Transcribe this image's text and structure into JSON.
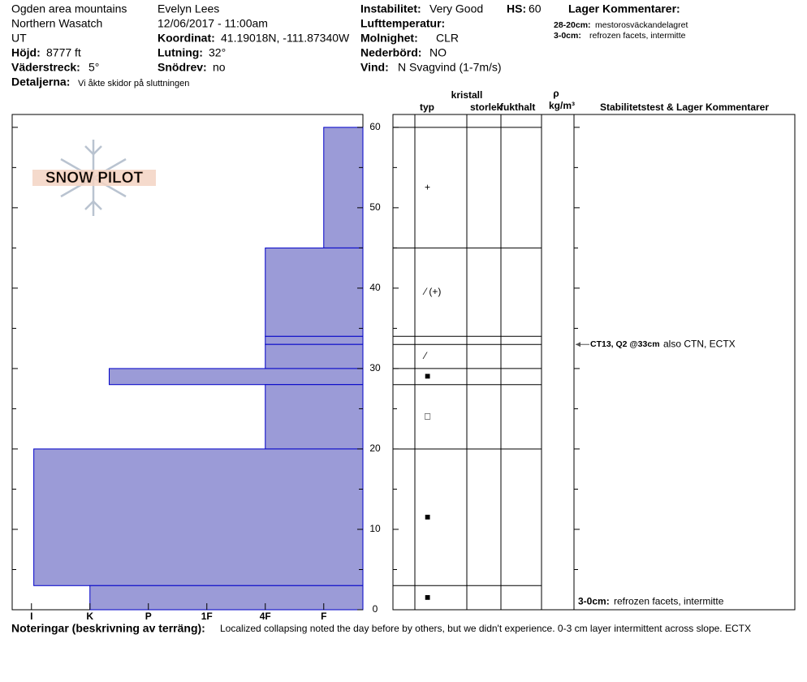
{
  "header": {
    "location": "Ogden area mountains",
    "range": "Northern Wasatch",
    "state": "UT",
    "elevation_label": "Höjd:",
    "elevation": "8777 ft",
    "aspect_label": "Väderstreck:",
    "aspect": "5°",
    "details_label": "Detaljerna:",
    "details": "Vi åkte skidor på sluttningen",
    "observer": "Evelyn Lees",
    "datetime": "12/06/2017 - 11:00am",
    "coord_label": "Koordinat:",
    "coord": "41.19018N, -111.87340W",
    "slope_label": "Lutning:",
    "slope": "32°",
    "wind_loading_label": "Snödrev:",
    "wind_loading": "no",
    "stability_label": "Instabilitet:",
    "stability": "Very Good",
    "hs_label": "HS:",
    "hs": "60",
    "air_temp_label": "Lufttemperatur:",
    "sky_label": "Molnighet:",
    "sky": "CLR",
    "precip_label": "Nederbörd:",
    "precip": "NO",
    "wind_label": "Vind:",
    "wind": "N Svagvind (1-7m/s)",
    "layer_comments_title": "Lager Kommentarer:",
    "layer_comments": [
      {
        "range": "28-20cm:",
        "text": "mestorosväckandelagret"
      },
      {
        "range": "3-0cm:",
        "text": "refrozen facets, intermitte"
      }
    ]
  },
  "logo": "SNOW PILOT",
  "columns": {
    "crystal": "kristall",
    "type": "typ",
    "size": "storlek",
    "moisture": "fukthalt",
    "rho": "ρ",
    "density_unit": "kg/m³",
    "tests": "Stabilitetstest & Lager Kommentarer"
  },
  "chart_data": {
    "type": "snow-profile",
    "xlim": [
      0.33,
      6.33
    ],
    "xticks": [
      {
        "value": 6,
        "label": "I"
      },
      {
        "value": 5,
        "label": "K"
      },
      {
        "value": 4,
        "label": "P"
      },
      {
        "value": 3,
        "label": "1F"
      },
      {
        "value": 2,
        "label": "4F"
      },
      {
        "value": 1,
        "label": "F"
      }
    ],
    "ylim": [
      0,
      61.6
    ],
    "yticks": [
      0,
      10,
      20,
      30,
      40,
      50,
      60
    ],
    "color": "#9b9bd7",
    "layers": [
      {
        "top": 60,
        "bottom": 45,
        "hardness": 1,
        "grain": "+"
      },
      {
        "top": 45,
        "bottom": 34,
        "hardness": 2,
        "grain": "⁄ (+)"
      },
      {
        "top": 34,
        "bottom": 33,
        "hardness": 2,
        "grain": null
      },
      {
        "top": 33,
        "bottom": 30,
        "hardness": 2,
        "grain": "⁄"
      },
      {
        "top": 30,
        "bottom": 28,
        "hardness": 4.67,
        "grain": "■"
      },
      {
        "top": 28,
        "bottom": 20,
        "hardness": 2,
        "grain": "□"
      },
      {
        "top": 20,
        "bottom": 3,
        "hardness": 5.96,
        "grain": "■"
      },
      {
        "top": 3,
        "bottom": 0,
        "hardness": 5,
        "grain": "■"
      }
    ],
    "test": {
      "depth": 33,
      "label": "CT13, Q2 @33cm",
      "note": "also CTN, ECTX"
    },
    "bottom_comment": {
      "depth": 3,
      "range": "3-0cm:",
      "text": "refrozen facets, intermitte"
    }
  },
  "footer": {
    "label": "Noteringar (beskrivning av terräng):",
    "text": "Localized collapsing noted the day before by others, but we didn't experience.  0-3 cm layer intermittent across slope.  ECTX"
  }
}
